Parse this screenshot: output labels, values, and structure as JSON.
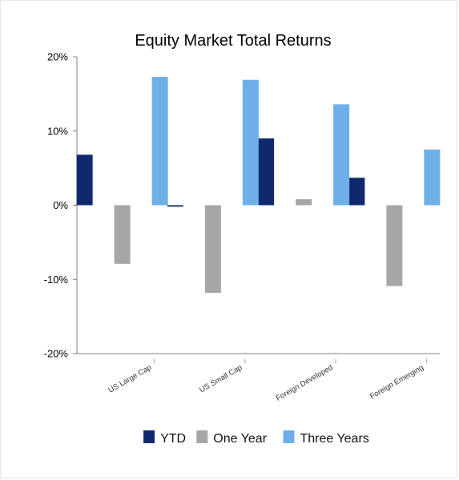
{
  "chart_data": {
    "type": "bar",
    "title": "Equity Market Total Returns",
    "xlabel": "",
    "ylabel": "",
    "categories": [
      "US Large Cap",
      "US Small Cap",
      "Foreign Developed",
      "Foreign Emerging"
    ],
    "series": [
      {
        "name": "YTD",
        "values": [
          6.8,
          -0.2,
          9.0,
          3.7
        ],
        "color": "#12286e"
      },
      {
        "name": "One Year",
        "values": [
          -7.9,
          -11.8,
          0.8,
          -10.9
        ],
        "color": "#a6a6a6"
      },
      {
        "name": "Three Years",
        "values": [
          17.3,
          16.9,
          13.6,
          7.5
        ],
        "color": "#6eafe9"
      }
    ],
    "ylim": [
      -20,
      20
    ],
    "yticks": [
      -20,
      -10,
      0,
      10,
      20
    ],
    "ytick_labels": [
      "-20%",
      "-10%",
      "0%",
      "10%",
      "20%"
    ],
    "grid": false,
    "legend_position": "bottom"
  }
}
